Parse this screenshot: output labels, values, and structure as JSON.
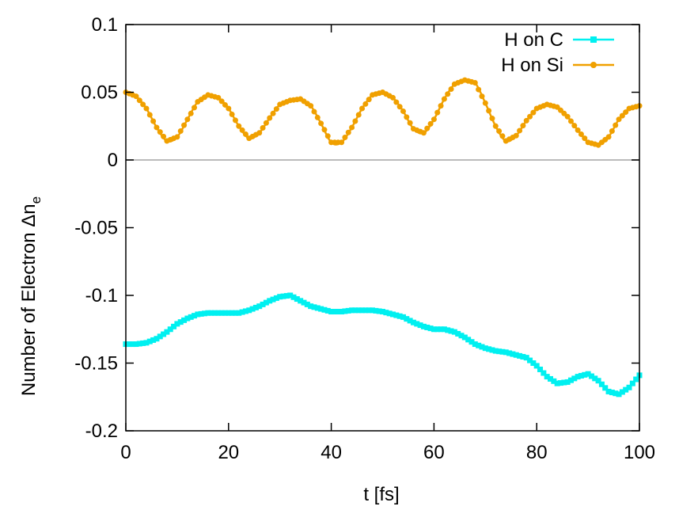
{
  "chart_data": {
    "type": "line",
    "title": "",
    "xlabel": "t  [fs]",
    "ylabel": {
      "prefix": "Number of Electron  Δn",
      "subscript": "e"
    },
    "xlim": [
      0,
      100
    ],
    "ylim": [
      -0.2,
      0.1
    ],
    "x_ticks": [
      0,
      20,
      40,
      60,
      80,
      100
    ],
    "x_tick_labels": [
      "0",
      "20",
      "40",
      "60",
      "80",
      "100"
    ],
    "y_ticks": [
      -0.2,
      -0.15,
      -0.1,
      -0.05,
      0,
      0.05,
      0.1
    ],
    "y_tick_labels": [
      "-0.2",
      "-0.15",
      "-0.1",
      "-0.05",
      "0",
      "0.05",
      "0.1"
    ],
    "zero_line": true,
    "zero_line_color": "#bbbbbb",
    "grid": false,
    "legend_position": "top-right",
    "series": [
      {
        "name": "H on C",
        "color": "#00f0f0",
        "marker": "square",
        "x": [
          0,
          2,
          4,
          6,
          8,
          10,
          12,
          14,
          16,
          18,
          20,
          22,
          24,
          26,
          28,
          30,
          32,
          34,
          36,
          38,
          40,
          42,
          44,
          46,
          48,
          50,
          52,
          54,
          56,
          58,
          60,
          62,
          64,
          66,
          68,
          70,
          72,
          74,
          76,
          78,
          80,
          82,
          84,
          86,
          88,
          90,
          92,
          94,
          96,
          98,
          100
        ],
        "y": [
          -0.136,
          -0.136,
          -0.135,
          -0.132,
          -0.127,
          -0.121,
          -0.117,
          -0.114,
          -0.113,
          -0.113,
          -0.113,
          -0.113,
          -0.111,
          -0.108,
          -0.104,
          -0.101,
          -0.1,
          -0.104,
          -0.108,
          -0.11,
          -0.112,
          -0.112,
          -0.111,
          -0.111,
          -0.111,
          -0.112,
          -0.114,
          -0.116,
          -0.12,
          -0.123,
          -0.125,
          -0.125,
          -0.127,
          -0.131,
          -0.136,
          -0.139,
          -0.141,
          -0.142,
          -0.144,
          -0.146,
          -0.152,
          -0.16,
          -0.165,
          -0.164,
          -0.16,
          -0.158,
          -0.163,
          -0.171,
          -0.173,
          -0.168,
          -0.159
        ]
      },
      {
        "name": "H on Si",
        "color": "#f0a000",
        "marker": "circle",
        "x": [
          0,
          2,
          4,
          6,
          8,
          10,
          12,
          14,
          16,
          18,
          20,
          22,
          24,
          26,
          28,
          30,
          32,
          34,
          36,
          38,
          40,
          42,
          44,
          46,
          48,
          50,
          52,
          54,
          56,
          58,
          60,
          62,
          64,
          66,
          68,
          70,
          72,
          74,
          76,
          78,
          80,
          82,
          84,
          86,
          88,
          90,
          92,
          94,
          96,
          98,
          100
        ],
        "y": [
          0.05,
          0.047,
          0.038,
          0.024,
          0.014,
          0.017,
          0.03,
          0.043,
          0.048,
          0.046,
          0.038,
          0.025,
          0.016,
          0.02,
          0.031,
          0.041,
          0.044,
          0.045,
          0.04,
          0.027,
          0.013,
          0.013,
          0.024,
          0.038,
          0.048,
          0.05,
          0.046,
          0.036,
          0.023,
          0.02,
          0.03,
          0.045,
          0.056,
          0.059,
          0.057,
          0.042,
          0.025,
          0.014,
          0.018,
          0.029,
          0.038,
          0.041,
          0.039,
          0.032,
          0.022,
          0.013,
          0.011,
          0.017,
          0.03,
          0.038,
          0.04
        ]
      }
    ]
  }
}
